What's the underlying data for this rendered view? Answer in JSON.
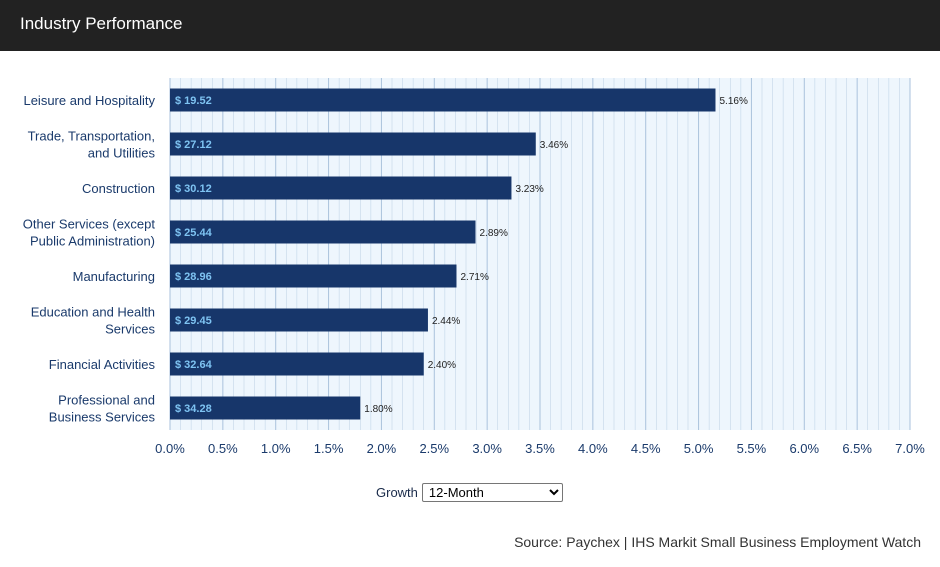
{
  "header": {
    "title": "Industry Performance"
  },
  "controls": {
    "growth_label": "Growth",
    "growth_selected": "12-Month"
  },
  "source": "Source: Paychex | IHS Markit Small Business Employment Watch",
  "colors": {
    "bar": "#17366a",
    "bar_label": "#7ec3f2",
    "plot_bg": "#eef6fd",
    "grid": "#c3d6e8",
    "axis_text": "#1a3a6b",
    "header_bg": "#222222"
  },
  "chart_data": {
    "type": "bar",
    "orientation": "horizontal",
    "categories": [
      [
        "Leisure and Hospitality"
      ],
      [
        "Trade, Transportation,",
        "and Utilities"
      ],
      [
        "Construction"
      ],
      [
        "Other Services (except",
        "Public Administration)"
      ],
      [
        "Manufacturing"
      ],
      [
        "Education and Health",
        "Services"
      ],
      [
        "Financial Activities"
      ],
      [
        "Professional and",
        "Business Services"
      ]
    ],
    "values": [
      5.16,
      3.46,
      3.23,
      2.89,
      2.71,
      2.44,
      2.4,
      1.8
    ],
    "value_labels": [
      "5.16%",
      "3.46%",
      "3.23%",
      "2.89%",
      "2.71%",
      "2.44%",
      "2.40%",
      "1.80%"
    ],
    "bar_labels": [
      "$ 19.52",
      "$ 27.12",
      "$ 30.12",
      "$ 25.44",
      "$ 28.96",
      "$ 29.45",
      "$ 32.64",
      "$ 34.28"
    ],
    "xlim": [
      0,
      7
    ],
    "xticks": [
      0,
      0.5,
      1,
      1.5,
      2,
      2.5,
      3,
      3.5,
      4,
      4.5,
      5,
      5.5,
      6,
      6.5,
      7
    ],
    "xtick_labels": [
      "0.0%",
      "0.5%",
      "1.0%",
      "1.5%",
      "2.0%",
      "2.5%",
      "3.0%",
      "3.5%",
      "4.0%",
      "4.5%",
      "5.0%",
      "5.5%",
      "6.0%",
      "6.5%",
      "7.0%"
    ],
    "title": "",
    "xlabel": "",
    "ylabel": "",
    "grid": true
  }
}
